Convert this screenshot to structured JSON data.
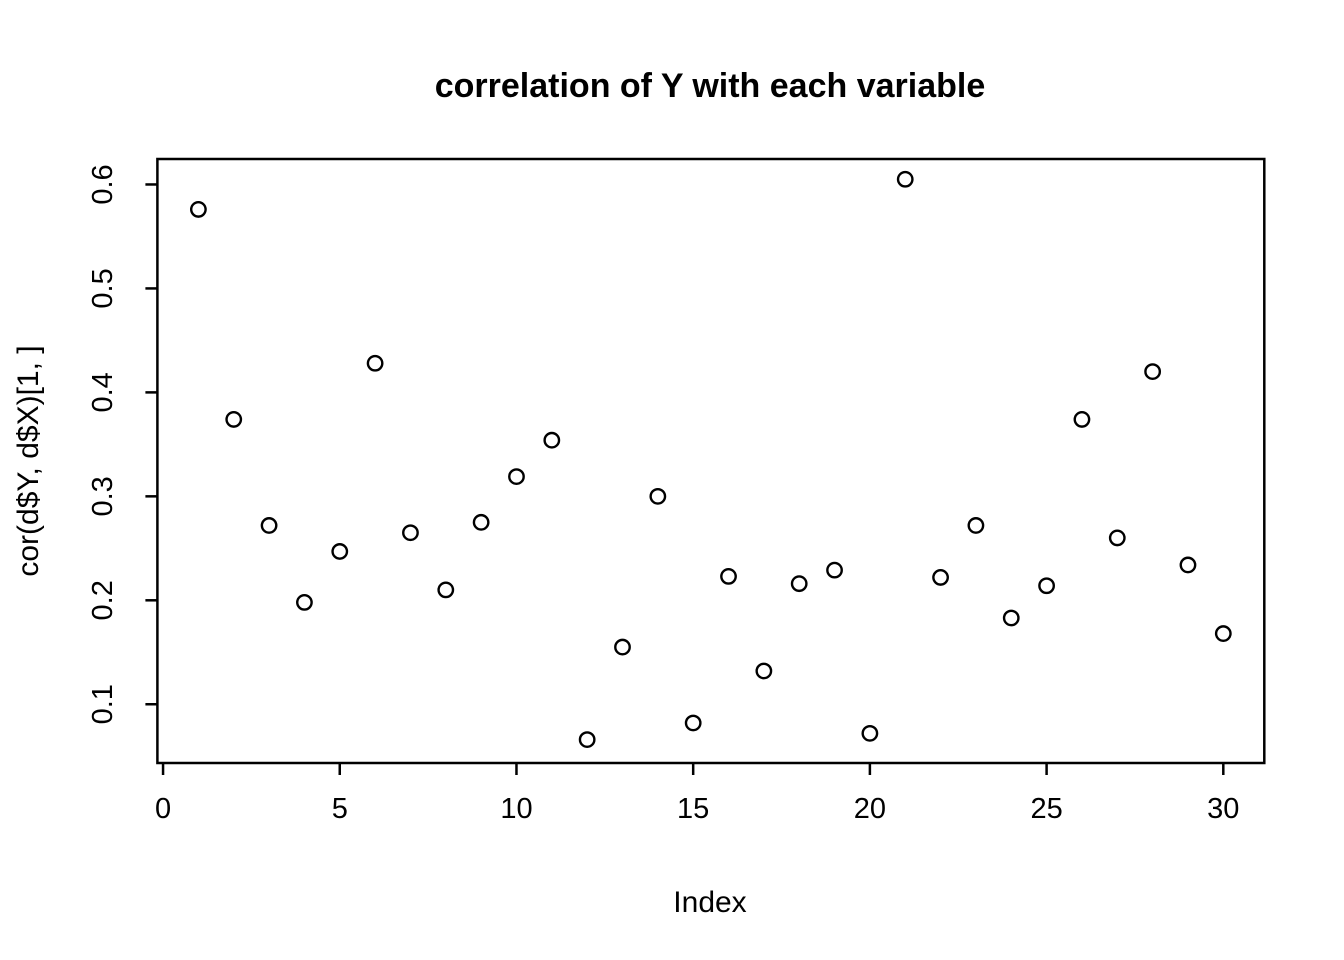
{
  "figure": {
    "background": "#ffffff",
    "foreground": "#000000"
  },
  "chart_data": {
    "type": "scatter",
    "title": "correlation of Y with each variable",
    "xlabel": "Index",
    "ylabel": "cor(d$Y, d$X)[1, ]",
    "x": [
      1,
      2,
      3,
      4,
      5,
      6,
      7,
      8,
      9,
      10,
      11,
      12,
      13,
      14,
      15,
      16,
      17,
      18,
      19,
      20,
      21,
      22,
      23,
      24,
      25,
      26,
      27,
      28,
      29,
      30
    ],
    "y": [
      0.576,
      0.374,
      0.272,
      0.198,
      0.247,
      0.428,
      0.265,
      0.21,
      0.275,
      0.319,
      0.354,
      0.066,
      0.155,
      0.3,
      0.082,
      0.223,
      0.132,
      0.216,
      0.229,
      0.072,
      0.605,
      0.222,
      0.272,
      0.183,
      0.214,
      0.374,
      0.26,
      0.42,
      0.234,
      0.168
    ],
    "xlim": [
      -0.16,
      31.16
    ],
    "ylim": [
      0.0435,
      0.6245
    ],
    "x_ticks": [
      0,
      5,
      10,
      15,
      20,
      25,
      30
    ],
    "y_ticks": [
      0.1,
      0.2,
      0.3,
      0.4,
      0.5,
      0.6
    ],
    "y_tick_decimals": 1,
    "grid": false,
    "legend": null,
    "point_style": {
      "marker": "open-circle",
      "color": "#000000"
    }
  }
}
